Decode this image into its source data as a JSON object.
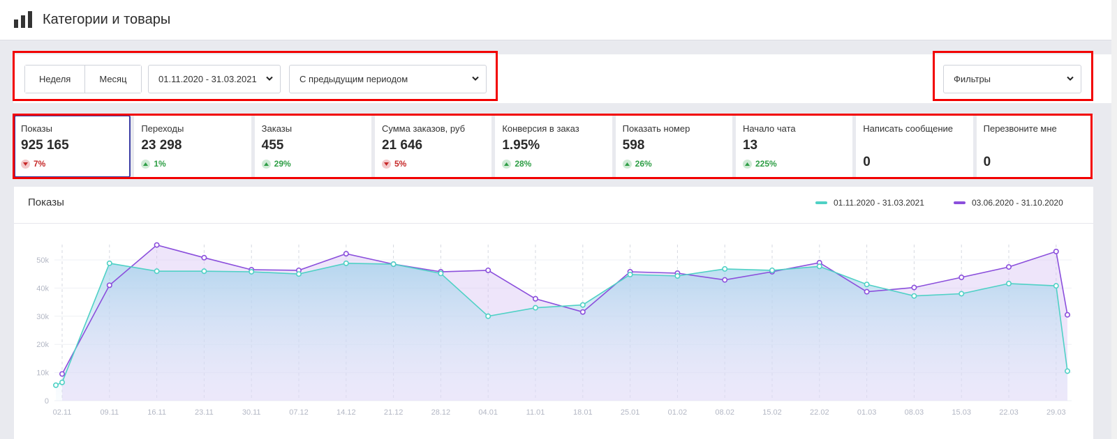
{
  "header": {
    "title": "Категории и товары",
    "icon": "bar-chart-icon"
  },
  "controls": {
    "period_week": "Неделя",
    "period_month": "Месяц",
    "date_range": "01.11.2020 - 31.03.2021",
    "compare": "С предыдущим периодом",
    "filters": "Фильтры"
  },
  "kpis": [
    {
      "label": "Показы",
      "value": "925 165",
      "delta": "7%",
      "dir": "down"
    },
    {
      "label": "Переходы",
      "value": "23 298",
      "delta": "1%",
      "dir": "up"
    },
    {
      "label": "Заказы",
      "value": "455",
      "delta": "29%",
      "dir": "up"
    },
    {
      "label": "Сумма заказов, руб",
      "value": "21 646",
      "delta": "5%",
      "dir": "down"
    },
    {
      "label": "Конверсия в заказ",
      "value": "1.95%",
      "delta": "28%",
      "dir": "up"
    },
    {
      "label": "Показать номер",
      "value": "598",
      "delta": "26%",
      "dir": "up"
    },
    {
      "label": "Начало чата",
      "value": "13",
      "delta": "225%",
      "dir": "up"
    },
    {
      "label": "Написать сообщение",
      "value": "0",
      "delta": "",
      "dir": ""
    },
    {
      "label": "Перезвоните мне",
      "value": "0",
      "delta": "",
      "dir": ""
    }
  ],
  "colors": {
    "current": "#4fd1c5",
    "previous": "#8b4fdc",
    "down": "#c62828",
    "up": "#2e9e45",
    "highlight": "#f20000"
  },
  "chart_data": {
    "type": "line",
    "title": "Показы",
    "categories": [
      "02.11",
      "09.11",
      "16.11",
      "23.11",
      "30.11",
      "07.12",
      "14.12",
      "21.12",
      "28.12",
      "04.01",
      "11.01",
      "18.01",
      "25.01",
      "01.02",
      "08.02",
      "15.02",
      "22.02",
      "01.03",
      "08.03",
      "15.03",
      "22.03",
      "29.03"
    ],
    "ylim": [
      0,
      55000
    ],
    "yticks": [
      "0",
      "10k",
      "20k",
      "30k",
      "40k",
      "50k"
    ],
    "ytick_values": [
      0,
      10000,
      20000,
      30000,
      40000,
      50000
    ],
    "series": [
      {
        "name": "01.11.2020 - 31.03.2021",
        "lead": 5500,
        "values": [
          6500,
          48800,
          46000,
          46000,
          45800,
          45000,
          48800,
          48500,
          45200,
          30000,
          33000,
          34000,
          44800,
          44300,
          46800,
          46300,
          47700,
          41300,
          37200,
          38000,
          41600,
          40800
        ],
        "tail": 10500
      },
      {
        "name": "03.06.2020 - 31.10.2020",
        "values": [
          9500,
          41000,
          55300,
          50800,
          46500,
          46300,
          52200,
          48500,
          45800,
          46300,
          36200,
          31500,
          45800,
          45300,
          42900,
          45800,
          49000,
          38700,
          40200,
          43800,
          47500,
          53000
        ],
        "tail": 30500
      }
    ]
  }
}
